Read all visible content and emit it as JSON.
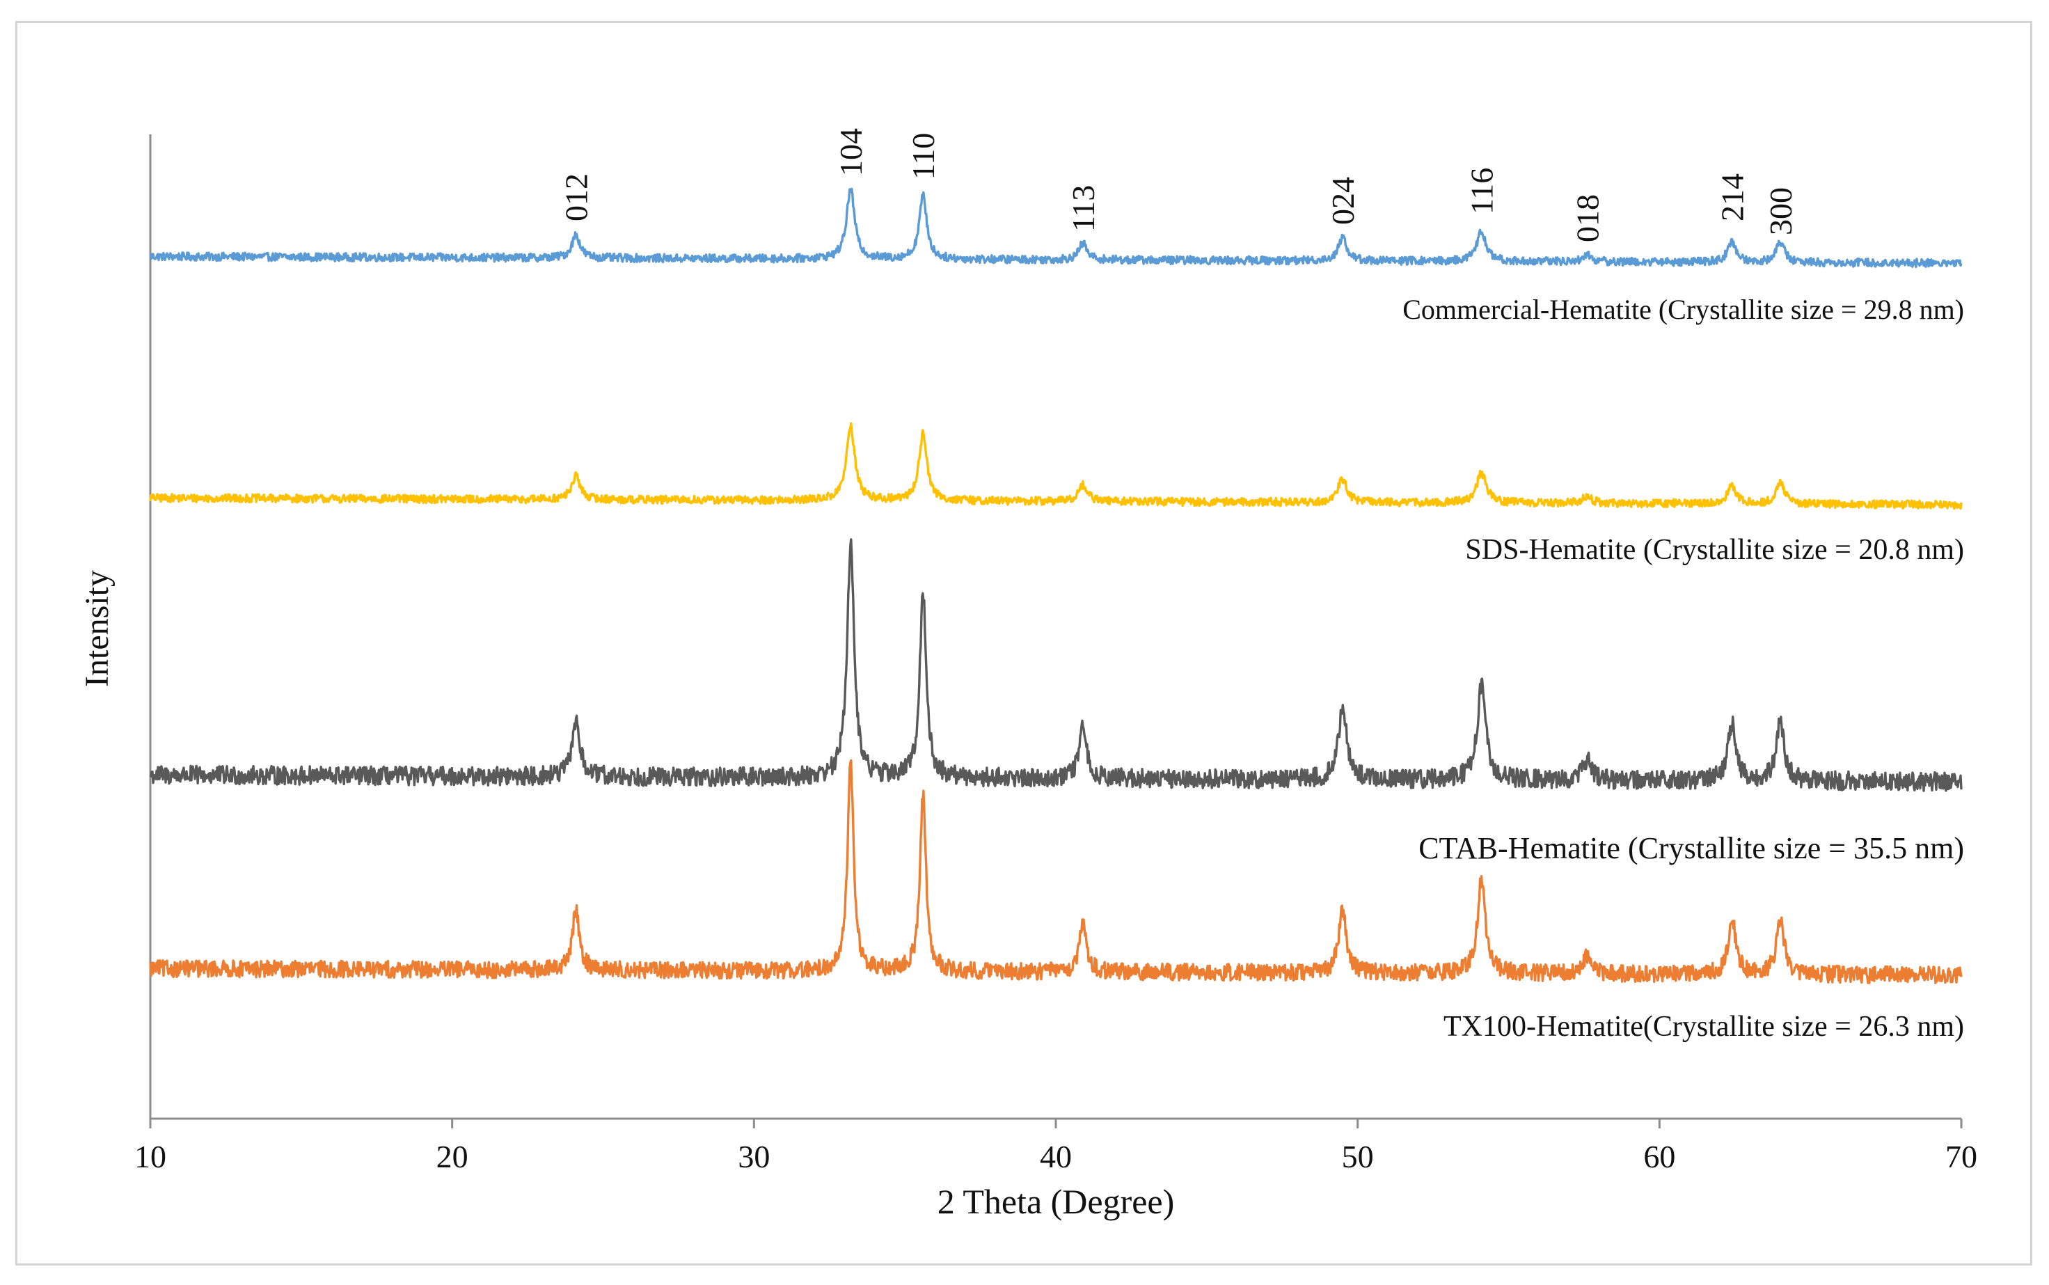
{
  "chart_data": {
    "type": "line",
    "title": "",
    "xlabel": "2 Theta (Degree)",
    "ylabel": "Intensity",
    "xlim": [
      10,
      70
    ],
    "xticks": [
      10,
      20,
      30,
      40,
      50,
      60,
      70
    ],
    "xtick_labels": [
      "10",
      "20",
      "30",
      "40",
      "50",
      "60",
      "70"
    ],
    "grid": false,
    "y_axis_ticks": "none",
    "peak_labels": [
      {
        "label": "012",
        "x": 24.1
      },
      {
        "label": "104",
        "x": 33.2
      },
      {
        "label": "110",
        "x": 35.6
      },
      {
        "label": "113",
        "x": 40.9
      },
      {
        "label": "024",
        "x": 49.5
      },
      {
        "label": "116",
        "x": 54.1
      },
      {
        "label": "018",
        "x": 57.6
      },
      {
        "label": "214",
        "x": 62.4
      },
      {
        "label": "300",
        "x": 64.0
      }
    ],
    "series": [
      {
        "name": "Commercial-Hematite",
        "annotation": "Commercial-Hematite  (Crystallite size =  29.8 nm)",
        "color": "#5b9bd5",
        "offset": 3.0,
        "noise": 0.012,
        "peaks": [
          {
            "x": 24.1,
            "h": 0.07,
            "w": 0.16
          },
          {
            "x": 33.2,
            "h": 0.21,
            "w": 0.16
          },
          {
            "x": 35.6,
            "h": 0.19,
            "w": 0.15
          },
          {
            "x": 40.9,
            "h": 0.05,
            "w": 0.16
          },
          {
            "x": 49.5,
            "h": 0.07,
            "w": 0.17
          },
          {
            "x": 54.1,
            "h": 0.09,
            "w": 0.18
          },
          {
            "x": 57.6,
            "h": 0.02,
            "w": 0.18
          },
          {
            "x": 62.4,
            "h": 0.06,
            "w": 0.17
          },
          {
            "x": 64.0,
            "h": 0.06,
            "w": 0.17
          }
        ]
      },
      {
        "name": "SDS-Hematite",
        "annotation": "SDS-Hematite (Crystallite  size = 20.8 nm)",
        "color": "#ffc000",
        "offset": 2.0,
        "noise": 0.012,
        "peaks": [
          {
            "x": 24.1,
            "h": 0.07,
            "w": 0.17
          },
          {
            "x": 33.2,
            "h": 0.22,
            "w": 0.17
          },
          {
            "x": 35.6,
            "h": 0.2,
            "w": 0.16
          },
          {
            "x": 40.9,
            "h": 0.05,
            "w": 0.17
          },
          {
            "x": 49.5,
            "h": 0.07,
            "w": 0.18
          },
          {
            "x": 54.1,
            "h": 0.09,
            "w": 0.19
          },
          {
            "x": 57.6,
            "h": 0.02,
            "w": 0.19
          },
          {
            "x": 62.4,
            "h": 0.05,
            "w": 0.18
          },
          {
            "x": 64.0,
            "h": 0.06,
            "w": 0.18
          }
        ]
      },
      {
        "name": "CTAB-Hematite",
        "annotation": "CTAB-Hematite (Crystallite  size =  35.5 nm)",
        "color": "#595959",
        "offset": 0.95,
        "noise": 0.028,
        "peaks": [
          {
            "x": 24.1,
            "h": 0.17,
            "w": 0.15
          },
          {
            "x": 33.2,
            "h": 0.7,
            "w": 0.14
          },
          {
            "x": 35.6,
            "h": 0.55,
            "w": 0.13
          },
          {
            "x": 40.9,
            "h": 0.15,
            "w": 0.15
          },
          {
            "x": 49.5,
            "h": 0.22,
            "w": 0.16
          },
          {
            "x": 54.1,
            "h": 0.28,
            "w": 0.17
          },
          {
            "x": 57.6,
            "h": 0.06,
            "w": 0.17
          },
          {
            "x": 62.4,
            "h": 0.17,
            "w": 0.16
          },
          {
            "x": 64.0,
            "h": 0.17,
            "w": 0.16
          }
        ]
      },
      {
        "name": "TX100-Hematite",
        "annotation": "TX100-Hematite(Crystallite  size =  26.3 nm)",
        "color": "#ed7d31",
        "offset": 0.0,
        "noise": 0.025,
        "peaks": [
          {
            "x": 24.1,
            "h": 0.18,
            "w": 0.14
          },
          {
            "x": 33.2,
            "h": 0.63,
            "w": 0.12
          },
          {
            "x": 35.6,
            "h": 0.53,
            "w": 0.12
          },
          {
            "x": 40.9,
            "h": 0.14,
            "w": 0.14
          },
          {
            "x": 49.5,
            "h": 0.19,
            "w": 0.15
          },
          {
            "x": 54.1,
            "h": 0.28,
            "w": 0.16
          },
          {
            "x": 57.6,
            "h": 0.05,
            "w": 0.16
          },
          {
            "x": 62.4,
            "h": 0.17,
            "w": 0.15
          },
          {
            "x": 64.0,
            "h": 0.17,
            "w": 0.15
          }
        ]
      }
    ]
  }
}
